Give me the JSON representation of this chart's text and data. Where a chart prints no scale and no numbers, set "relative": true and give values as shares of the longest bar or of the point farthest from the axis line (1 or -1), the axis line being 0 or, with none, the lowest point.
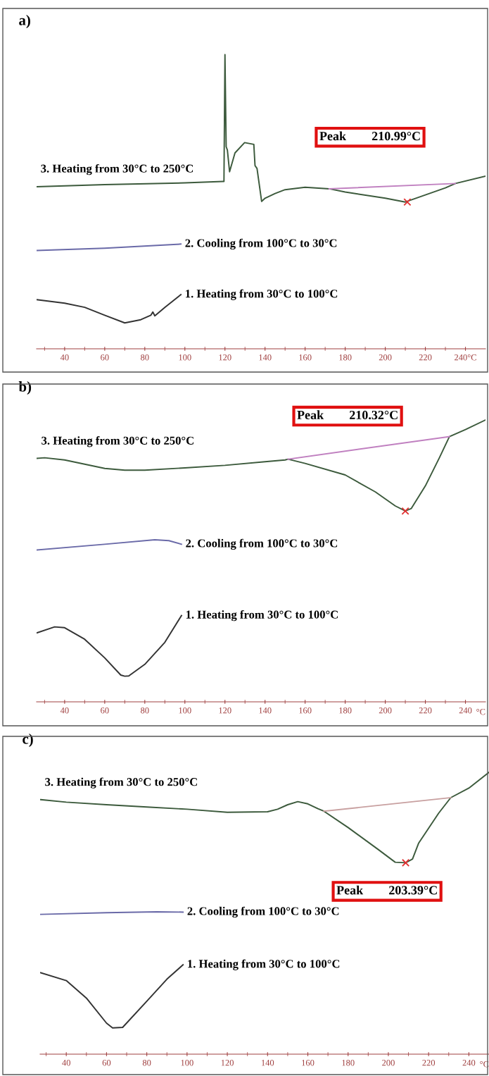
{
  "chart_data": [
    {
      "type": "line",
      "title": "a)",
      "relative": true,
      "legend": false,
      "xlim": [
        26,
        250
      ],
      "xticks": [
        {
          "value": 30,
          "label": null
        },
        40,
        {
          "value": 50,
          "label": null
        },
        60,
        {
          "value": 70,
          "label": null
        },
        80,
        {
          "value": 90,
          "label": null
        },
        100,
        {
          "value": 110,
          "label": null
        },
        120,
        {
          "value": 130,
          "label": null
        },
        140,
        {
          "value": 150,
          "label": null
        },
        160,
        {
          "value": 170,
          "label": null
        },
        180,
        {
          "value": 190,
          "label": null
        },
        200,
        {
          "value": 210,
          "label": null
        },
        220,
        {
          "value": 230,
          "label": null
        },
        {
          "value": 240,
          "label": "240°C"
        }
      ],
      "annotations": [
        "Peak        210.99°C"
      ],
      "series": [
        {
          "name": "3. Heating from 30°C to 250°C",
          "color": "#3c5a3c",
          "x": [
            26,
            60,
            100,
            119,
            119.5,
            120,
            120.6,
            121.2,
            122.3,
            125,
            129.8,
            134.4,
            135,
            136,
            138.3,
            140,
            145,
            150,
            160,
            172,
            180,
            200,
            210,
            220,
            230,
            235,
            250
          ],
          "values": [
            0.551,
            0.558,
            0.564,
            0.569,
            0.569,
            1.0,
            0.687,
            0.676,
            0.602,
            0.666,
            0.701,
            0.695,
            0.623,
            0.613,
            0.501,
            0.512,
            0.528,
            0.541,
            0.549,
            0.544,
            0.533,
            0.512,
            0.499,
            0.523,
            0.547,
            0.562,
            0.587
          ]
        },
        {
          "name": "2. Cooling from 100°C to 30°C",
          "color": "#6a6aa8",
          "x": [
            26,
            60,
            98
          ],
          "values": [
            0.334,
            0.342,
            0.356
          ]
        },
        {
          "name": "1. Heating from 30°C to 100°C",
          "color": "#333333",
          "x": [
            26,
            40,
            50,
            60,
            70,
            78,
            83,
            84,
            85,
            90,
            98
          ],
          "values": [
            0.167,
            0.155,
            0.141,
            0.114,
            0.088,
            0.099,
            0.114,
            0.125,
            0.112,
            0.141,
            0.184
          ]
        },
        {
          "color": "#c080c0",
          "x": [
            172,
            235
          ],
          "values": [
            0.544,
            0.562
          ]
        },
        {
          "type": "scatter",
          "marker": "cross",
          "color": "#e03030",
          "x": [
            211
          ],
          "values": [
            0.499
          ]
        }
      ]
    },
    {
      "type": "line",
      "title": "b)",
      "xlabel": "°C",
      "relative": true,
      "legend": false,
      "xlim": [
        26,
        250
      ],
      "xticks": [
        {
          "value": 30,
          "label": null
        },
        40,
        {
          "value": 50,
          "label": null
        },
        60,
        {
          "value": 70,
          "label": null
        },
        80,
        {
          "value": 90,
          "label": null
        },
        100,
        {
          "value": 110,
          "label": null
        },
        120,
        {
          "value": 130,
          "label": null
        },
        140,
        {
          "value": 150,
          "label": null
        },
        160,
        {
          "value": 170,
          "label": null
        },
        180,
        {
          "value": 190,
          "label": null
        },
        200,
        {
          "value": 210,
          "label": null
        },
        220,
        {
          "value": 230,
          "label": null
        },
        240
      ],
      "annotations": [
        "Peak        210.32°C"
      ],
      "series": [
        {
          "name": "3. Heating from 30°C to 250°C",
          "color": "#3c5a3c",
          "x": [
            26.3,
            30,
            40,
            60,
            70,
            80,
            100,
            120,
            140,
            150,
            151.5,
            160,
            180,
            195,
            205,
            210,
            213,
            220,
            227,
            232,
            240,
            250
          ],
          "values": [
            0.864,
            0.866,
            0.858,
            0.828,
            0.822,
            0.822,
            0.83,
            0.839,
            0.852,
            0.858,
            0.861,
            0.846,
            0.805,
            0.745,
            0.695,
            0.677,
            0.686,
            0.766,
            0.866,
            0.941,
            0.966,
            1.0
          ]
        },
        {
          "name": "2. Cooling from 100°C to 30°C",
          "color": "#6a6aa8",
          "x": [
            26.3,
            60,
            85,
            92,
            98.3
          ],
          "values": [
            0.539,
            0.559,
            0.575,
            0.572,
            0.559
          ]
        },
        {
          "name": "1. Heating from 30°C to 100°C",
          "color": "#333333",
          "x": [
            26.3,
            35,
            40,
            50,
            60,
            68,
            70,
            72,
            80,
            90,
            98.3
          ],
          "values": [
            0.245,
            0.266,
            0.263,
            0.222,
            0.156,
            0.095,
            0.091,
            0.092,
            0.133,
            0.211,
            0.306
          ]
        },
        {
          "color": "#c080c0",
          "x": [
            151.5,
            232
          ],
          "values": [
            0.861,
            0.941
          ]
        },
        {
          "type": "scatter",
          "marker": "cross",
          "color": "#e03030",
          "x": [
            210
          ],
          "values": [
            0.677
          ]
        }
      ]
    },
    {
      "type": "line",
      "title": "c)",
      "xlabel": "°C",
      "relative": true,
      "legend": false,
      "xlim": [
        27,
        250
      ],
      "xticks": [
        {
          "value": 30,
          "label": null
        },
        40,
        {
          "value": 50,
          "label": null
        },
        60,
        {
          "value": 70,
          "label": null
        },
        80,
        {
          "value": 90,
          "label": null
        },
        100,
        {
          "value": 110,
          "label": null
        },
        120,
        {
          "value": 130,
          "label": null
        },
        140,
        {
          "value": 150,
          "label": null
        },
        160,
        {
          "value": 170,
          "label": null
        },
        180,
        {
          "value": 190,
          "label": null
        },
        200,
        {
          "value": 210,
          "label": null
        },
        220,
        {
          "value": 230,
          "label": null
        },
        240
      ],
      "annotations": [
        "Peak        203.39°C"
      ],
      "series": [
        {
          "name": "3. Heating from 30°C to 250°C",
          "color": "#3c5a3c",
          "x": [
            27.3,
            40,
            60,
            80,
            100,
            120,
            140,
            145,
            150,
            155,
            160,
            165,
            168,
            180,
            195,
            203.4,
            208.6,
            212,
            215,
            225,
            231,
            240,
            250
          ],
          "values": [
            0.903,
            0.894,
            0.885,
            0.877,
            0.869,
            0.858,
            0.86,
            0.869,
            0.885,
            0.896,
            0.888,
            0.871,
            0.862,
            0.804,
            0.726,
            0.681,
            0.679,
            0.692,
            0.748,
            0.855,
            0.91,
            0.944,
            1.0
          ]
        },
        {
          "name": "2. Cooling from 100°C to 30°C",
          "color": "#6a6aa8",
          "x": [
            27.3,
            60,
            85,
            98
          ],
          "values": [
            0.496,
            0.502,
            0.505,
            0.504
          ]
        },
        {
          "name": "1. Heating from 30°C to 100°C",
          "color": "#333333",
          "x": [
            27.3,
            40,
            50,
            60,
            63,
            68,
            80,
            90,
            98
          ],
          "values": [
            0.289,
            0.261,
            0.199,
            0.11,
            0.093,
            0.095,
            0.188,
            0.266,
            0.317
          ]
        },
        {
          "color": "#c8a0a0",
          "x": [
            168,
            231
          ],
          "values": [
            0.862,
            0.91
          ]
        },
        {
          "type": "scatter",
          "marker": "cross",
          "color": "#e03030",
          "x": [
            208.6
          ],
          "values": [
            0.679
          ]
        }
      ]
    }
  ]
}
